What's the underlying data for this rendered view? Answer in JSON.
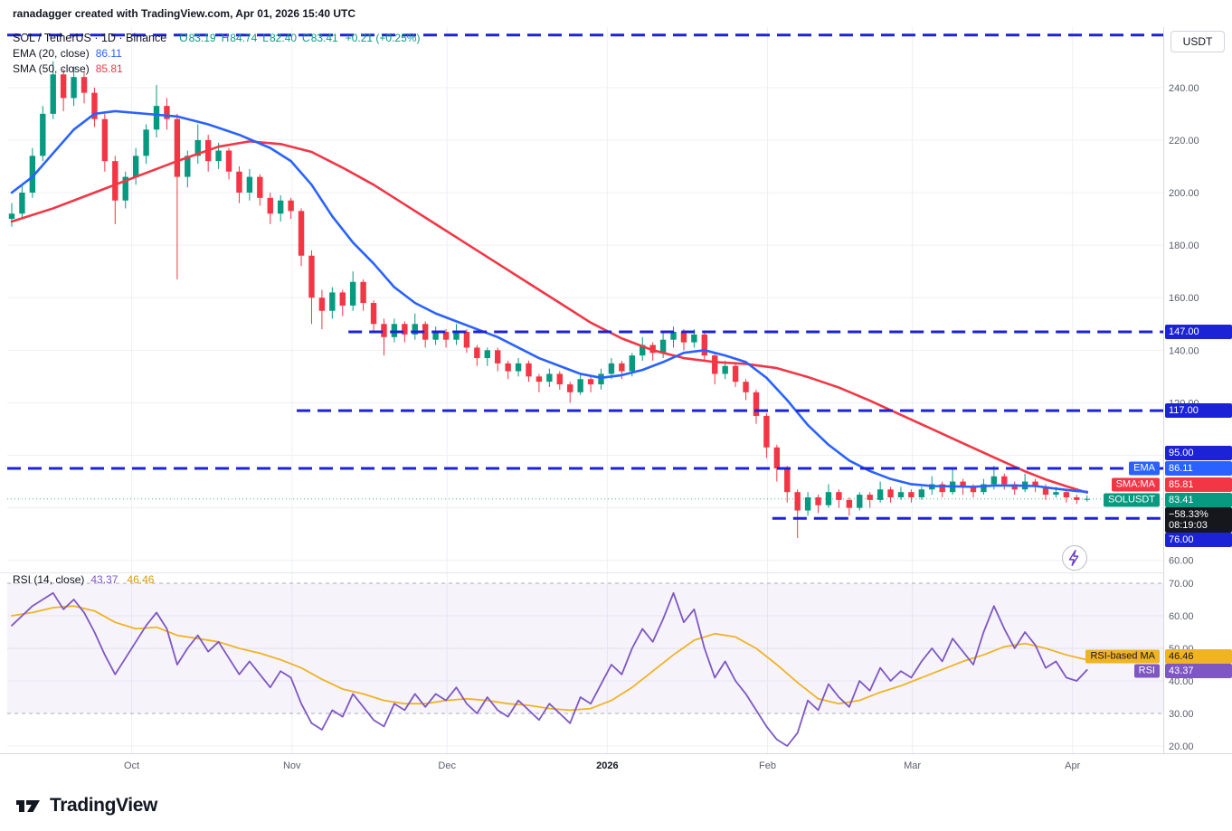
{
  "header": {
    "title": "ranadagger created with TradingView.com, Apr 01, 2026 15:40 UTC"
  },
  "toolbar": {
    "currency_label": "USDT"
  },
  "legend": {
    "symbol_title": "SOL / TetherUS · 1D · Binance",
    "ohlc": [
      {
        "k": "O",
        "v": "83.19"
      },
      {
        "k": "H",
        "v": "84.74"
      },
      {
        "k": "L",
        "v": "82.40"
      },
      {
        "k": "C",
        "v": "83.41"
      }
    ],
    "change": "+0.21 (+0.25%)",
    "ema_label": "EMA (20, close)",
    "ema_value": "86.11",
    "sma_label": "SMA (50, close)",
    "sma_value": "85.81",
    "rsi_label": "RSI (14, close)",
    "rsi_value": "43.37",
    "rsi_ma_value": "46.46"
  },
  "colors": {
    "up": "#089981",
    "down": "#f23645",
    "ema": "#2962ff",
    "sma": "#f23645",
    "level": "#1c23d6",
    "rsi": "#7e57c2",
    "rsi_ma": "#f0b324",
    "last_badge": "#089981",
    "countdown_bg": "#15171c",
    "grid": "#eef0f4",
    "axis_text": "#595e6b",
    "muted_text": "#787b86",
    "dark_text": "#131722"
  },
  "price_axis": {
    "ticks": [
      {
        "v": 240,
        "t": "240.00"
      },
      {
        "v": 220,
        "t": "220.00"
      },
      {
        "v": 200,
        "t": "200.00"
      },
      {
        "v": 180,
        "t": "180.00"
      },
      {
        "v": 160,
        "t": "160.00"
      },
      {
        "v": 140,
        "t": "140.00"
      },
      {
        "v": 120,
        "t": "120.00"
      },
      {
        "v": 60,
        "t": "60.00"
      }
    ]
  },
  "rsi_axis": {
    "ticks": [
      {
        "v": 70,
        "t": "70.00"
      },
      {
        "v": 60,
        "t": "60.00"
      },
      {
        "v": 50,
        "t": "50.00"
      },
      {
        "v": 40,
        "t": "40.00"
      },
      {
        "v": 30,
        "t": "30.00"
      },
      {
        "v": 20,
        "t": "20.00"
      }
    ]
  },
  "time_axis": {
    "labels": [
      {
        "t": "Oct",
        "i": 11.6
      },
      {
        "t": "Nov",
        "i": 27.1
      },
      {
        "t": "Dec",
        "i": 42.1
      },
      {
        "t": "2026",
        "i": 57.6,
        "bold": true
      },
      {
        "t": "Feb",
        "i": 73.1
      },
      {
        "t": "Mar",
        "i": 87.1
      },
      {
        "t": "Apr",
        "i": 102.6
      }
    ]
  },
  "axis_badges": {
    "main": [
      {
        "name": "level-147",
        "text": "147.00",
        "type": "level"
      },
      {
        "name": "level-117",
        "text": "117.00",
        "type": "level"
      },
      {
        "name": "level-95",
        "text": "95.00",
        "type": "level"
      },
      {
        "name": "ema",
        "tag": "EMA",
        "text": "86.11",
        "type": "ema"
      },
      {
        "name": "sma",
        "tag": "SMA:MA",
        "text": "85.81",
        "type": "sma"
      },
      {
        "name": "last",
        "tag": "SOLUSDT",
        "text": "83.41",
        "type": "last"
      },
      {
        "name": "countdown",
        "lines": [
          "−58.33%",
          "08:19:03"
        ],
        "type": "countdown"
      },
      {
        "name": "level-76",
        "text": "76.00",
        "type": "level"
      }
    ],
    "rsi": [
      {
        "name": "rsi-ma",
        "tag": "RSI-based MA",
        "text": "46.46",
        "type": "rsi-ma"
      },
      {
        "name": "rsi",
        "tag": "RSI",
        "text": "43.37",
        "type": "rsi"
      }
    ]
  },
  "footer": {
    "brand": "TradingView"
  },
  "chart_data": {
    "type": "candlestick",
    "title": "SOL / TetherUS · 1D · Binance",
    "symbol": "SOLUSDT",
    "exchange": "Binance",
    "interval": "1D",
    "price_axis_range": [
      56.5,
      263
    ],
    "rsi_axis_range": [
      18,
      72.5
    ],
    "candles": [
      [
        190,
        196,
        187,
        192
      ],
      [
        192,
        203,
        190,
        200
      ],
      [
        200,
        217,
        198,
        214
      ],
      [
        214,
        233,
        212,
        230
      ],
      [
        230,
        250,
        228,
        245
      ],
      [
        245,
        247,
        231,
        236
      ],
      [
        236,
        248,
        233,
        244
      ],
      [
        244,
        246,
        234,
        238
      ],
      [
        238,
        240,
        225,
        228
      ],
      [
        228,
        230,
        208,
        212
      ],
      [
        212,
        214,
        188,
        197
      ],
      [
        197,
        208,
        194,
        206
      ],
      [
        206,
        217,
        203,
        214
      ],
      [
        214,
        226,
        211,
        224
      ],
      [
        224,
        241,
        221,
        233
      ],
      [
        233,
        236,
        224,
        228
      ],
      [
        228,
        230,
        167,
        206
      ],
      [
        206,
        216,
        202,
        214
      ],
      [
        214,
        226,
        211,
        220
      ],
      [
        220,
        222,
        208,
        212
      ],
      [
        212,
        219,
        209,
        216
      ],
      [
        216,
        217,
        205,
        208
      ],
      [
        208,
        210,
        196,
        200
      ],
      [
        200,
        209,
        197,
        206
      ],
      [
        206,
        207,
        195,
        198
      ],
      [
        198,
        200,
        188,
        192
      ],
      [
        192,
        199,
        189,
        197
      ],
      [
        197,
        198,
        190,
        193
      ],
      [
        193,
        194,
        172,
        176
      ],
      [
        176,
        178,
        150,
        160
      ],
      [
        160,
        163,
        148,
        155
      ],
      [
        155,
        164,
        152,
        162
      ],
      [
        162,
        163,
        153,
        157
      ],
      [
        157,
        170,
        155,
        166
      ],
      [
        166,
        167,
        155,
        158
      ],
      [
        158,
        159,
        147,
        150
      ],
      [
        150,
        152,
        138,
        145
      ],
      [
        145,
        152,
        143,
        150
      ],
      [
        150,
        151,
        143,
        146
      ],
      [
        146,
        154,
        144,
        150
      ],
      [
        150,
        151,
        141,
        144
      ],
      [
        144,
        149,
        142,
        147
      ],
      [
        147,
        148,
        141,
        144
      ],
      [
        144,
        150,
        142,
        147
      ],
      [
        147,
        148,
        139,
        141
      ],
      [
        141,
        142,
        134,
        137
      ],
      [
        137,
        141,
        134,
        140
      ],
      [
        140,
        141,
        132,
        135
      ],
      [
        135,
        136,
        129,
        132
      ],
      [
        132,
        137,
        130,
        135
      ],
      [
        135,
        136,
        128,
        130
      ],
      [
        130,
        131,
        124,
        128
      ],
      [
        128,
        133,
        126,
        131
      ],
      [
        131,
        132,
        125,
        127
      ],
      [
        127,
        128,
        120,
        124
      ],
      [
        124,
        131,
        123,
        129
      ],
      [
        129,
        130,
        124,
        127
      ],
      [
        127,
        133,
        125,
        131
      ],
      [
        131,
        137,
        129,
        135
      ],
      [
        135,
        136,
        129,
        132
      ],
      [
        132,
        139,
        130,
        138
      ],
      [
        138,
        145,
        136,
        142
      ],
      [
        142,
        143,
        136,
        139
      ],
      [
        139,
        147,
        137,
        144
      ],
      [
        144,
        149,
        141,
        147
      ],
      [
        147,
        148,
        140,
        143
      ],
      [
        143,
        148,
        141,
        146
      ],
      [
        146,
        147,
        136,
        138
      ],
      [
        138,
        139,
        127,
        131
      ],
      [
        131,
        136,
        129,
        134
      ],
      [
        134,
        135,
        126,
        128
      ],
      [
        128,
        129,
        121,
        124
      ],
      [
        124,
        125,
        112,
        115
      ],
      [
        115,
        116,
        99,
        103
      ],
      [
        103,
        104,
        90,
        95
      ],
      [
        95,
        96,
        82,
        86
      ],
      [
        86,
        87,
        68.5,
        79
      ],
      [
        79,
        86,
        77,
        84
      ],
      [
        84,
        85,
        78,
        81
      ],
      [
        81,
        89,
        80,
        86
      ],
      [
        86,
        87,
        80,
        83
      ],
      [
        83,
        84,
        77,
        80
      ],
      [
        80,
        86,
        79,
        85
      ],
      [
        85,
        86,
        80,
        83
      ],
      [
        83,
        90,
        82,
        87
      ],
      [
        87,
        88,
        82,
        84
      ],
      [
        84,
        88,
        83,
        86
      ],
      [
        86,
        87,
        82,
        84
      ],
      [
        84,
        88,
        83,
        87
      ],
      [
        87,
        92,
        85,
        89
      ],
      [
        89,
        90,
        84,
        86
      ],
      [
        86,
        95,
        85,
        90
      ],
      [
        90,
        91,
        85,
        88
      ],
      [
        88,
        89,
        84,
        86
      ],
      [
        86,
        91,
        85,
        89
      ],
      [
        89,
        96,
        87,
        92
      ],
      [
        92,
        93,
        87,
        89
      ],
      [
        89,
        90,
        85,
        87
      ],
      [
        87,
        93,
        86,
        90
      ],
      [
        90,
        91,
        86,
        88
      ],
      [
        88,
        89,
        83,
        85
      ],
      [
        85,
        88,
        84,
        86
      ],
      [
        86,
        87,
        82,
        84
      ],
      [
        84,
        85,
        81.5,
        83
      ],
      [
        83.19,
        84.74,
        82.4,
        83.41
      ]
    ],
    "overlays": {
      "ema20_points": [
        [
          0,
          200
        ],
        [
          2,
          206
        ],
        [
          4,
          215
        ],
        [
          6,
          224
        ],
        [
          8,
          230
        ],
        [
          10,
          231
        ],
        [
          13,
          230
        ],
        [
          16,
          229
        ],
        [
          19,
          226
        ],
        [
          22,
          222
        ],
        [
          25,
          217
        ],
        [
          27,
          212
        ],
        [
          29,
          203
        ],
        [
          31,
          191
        ],
        [
          33,
          181
        ],
        [
          35,
          173
        ],
        [
          37,
          164
        ],
        [
          39,
          158
        ],
        [
          41,
          154
        ],
        [
          43,
          151
        ],
        [
          45,
          148
        ],
        [
          47,
          145
        ],
        [
          49,
          141
        ],
        [
          51,
          137
        ],
        [
          53,
          134
        ],
        [
          55,
          131
        ],
        [
          57,
          129.5
        ],
        [
          59,
          130.5
        ],
        [
          61,
          132.5
        ],
        [
          63,
          135.5
        ],
        [
          65,
          139
        ],
        [
          67,
          140
        ],
        [
          69,
          138
        ],
        [
          71,
          135.5
        ],
        [
          73,
          129.5
        ],
        [
          75,
          121
        ],
        [
          77,
          111.5
        ],
        [
          79,
          104
        ],
        [
          81,
          98
        ],
        [
          83,
          94
        ],
        [
          85,
          91
        ],
        [
          87,
          89
        ],
        [
          89,
          88.3
        ],
        [
          91,
          88.2
        ],
        [
          93,
          88
        ],
        [
          95,
          88.5
        ],
        [
          97,
          88.5
        ],
        [
          99,
          88.3
        ],
        [
          101,
          87.3
        ],
        [
          103,
          86.4
        ],
        [
          104,
          86.11
        ]
      ],
      "sma50_points": [
        [
          0,
          189
        ],
        [
          4,
          194
        ],
        [
          8,
          200
        ],
        [
          12,
          206
        ],
        [
          16,
          212
        ],
        [
          20,
          217.5
        ],
        [
          23,
          219.5
        ],
        [
          26,
          218.5
        ],
        [
          29,
          215.5
        ],
        [
          32,
          209.5
        ],
        [
          35,
          203
        ],
        [
          38,
          195.5
        ],
        [
          41,
          188
        ],
        [
          44,
          180.5
        ],
        [
          47,
          173
        ],
        [
          50,
          165.5
        ],
        [
          53,
          158
        ],
        [
          56,
          150.5
        ],
        [
          59,
          144.5
        ],
        [
          62,
          140
        ],
        [
          65,
          137
        ],
        [
          68,
          135.5
        ],
        [
          71,
          134.8
        ],
        [
          74,
          133.2
        ],
        [
          77,
          129.8
        ],
        [
          80,
          125.8
        ],
        [
          83,
          120.8
        ],
        [
          86,
          115.4
        ],
        [
          89,
          110
        ],
        [
          92,
          104.6
        ],
        [
          95,
          99.2
        ],
        [
          98,
          93.9
        ],
        [
          100,
          90.8
        ],
        [
          102,
          88.2
        ],
        [
          104,
          85.81
        ]
      ]
    },
    "levels": [
      {
        "price": 260,
        "from": 0
      },
      {
        "price": 147,
        "from": 33,
        "label": "147.00"
      },
      {
        "price": 117,
        "from": 28,
        "label": "117.00"
      },
      {
        "price": 95,
        "from": 0,
        "label": "95.00"
      },
      {
        "price": 76,
        "from": 74,
        "label": "76.00"
      }
    ],
    "last": {
      "price": 83.41,
      "change": "+0.21 (+0.25%)",
      "countdown": "08:19:03",
      "session_change": "−58.33%"
    },
    "rsi": {
      "period": 14,
      "value": 43.37,
      "ma_value": 46.46,
      "upper": 70,
      "lower": 30,
      "series": [
        57,
        60,
        63,
        65,
        67,
        62,
        65,
        61,
        55,
        48,
        42,
        47,
        52,
        57,
        61,
        56,
        45,
        50,
        54,
        49,
        52,
        47,
        42,
        46,
        42,
        38,
        43,
        41,
        33,
        27,
        25,
        31,
        29,
        36,
        32,
        28,
        26,
        33,
        31,
        36,
        32,
        36,
        34,
        38,
        33,
        30,
        35,
        31,
        29,
        34,
        31,
        28,
        33,
        30,
        27,
        35,
        33,
        39,
        45,
        42,
        50,
        56,
        52,
        59,
        67,
        58,
        62,
        50,
        41,
        46,
        40,
        36,
        31,
        26,
        22,
        20,
        24,
        34,
        31,
        39,
        35,
        32,
        40,
        37,
        44,
        40,
        43,
        41,
        46,
        50,
        46,
        53,
        49,
        45,
        55,
        63,
        56,
        50,
        55,
        51,
        44,
        46,
        41,
        40,
        43.37
      ],
      "ma_points": [
        [
          0,
          60
        ],
        [
          2,
          61
        ],
        [
          4,
          62.5
        ],
        [
          6,
          63
        ],
        [
          8,
          61.5
        ],
        [
          10,
          58
        ],
        [
          12,
          56
        ],
        [
          14,
          56.5
        ],
        [
          16,
          54
        ],
        [
          18,
          53
        ],
        [
          20,
          52
        ],
        [
          22,
          50
        ],
        [
          24,
          48.5
        ],
        [
          26,
          46.5
        ],
        [
          28,
          44
        ],
        [
          30,
          40.5
        ],
        [
          32,
          37.5
        ],
        [
          34,
          36
        ],
        [
          36,
          34
        ],
        [
          38,
          33
        ],
        [
          40,
          33
        ],
        [
          42,
          34
        ],
        [
          44,
          34.5
        ],
        [
          46,
          34
        ],
        [
          48,
          33
        ],
        [
          50,
          32.5
        ],
        [
          52,
          31.5
        ],
        [
          54,
          31
        ],
        [
          56,
          31.5
        ],
        [
          58,
          34
        ],
        [
          60,
          38
        ],
        [
          62,
          43
        ],
        [
          64,
          48
        ],
        [
          66,
          52.5
        ],
        [
          68,
          54.5
        ],
        [
          70,
          53.5
        ],
        [
          72,
          50
        ],
        [
          74,
          45
        ],
        [
          76,
          39.5
        ],
        [
          78,
          34.5
        ],
        [
          80,
          33
        ],
        [
          82,
          34
        ],
        [
          84,
          36.5
        ],
        [
          86,
          38.5
        ],
        [
          88,
          41
        ],
        [
          90,
          43.5
        ],
        [
          92,
          46
        ],
        [
          94,
          48
        ],
        [
          96,
          50.5
        ],
        [
          98,
          51.5
        ],
        [
          100,
          50
        ],
        [
          102,
          48
        ],
        [
          104,
          46.46
        ]
      ]
    }
  }
}
